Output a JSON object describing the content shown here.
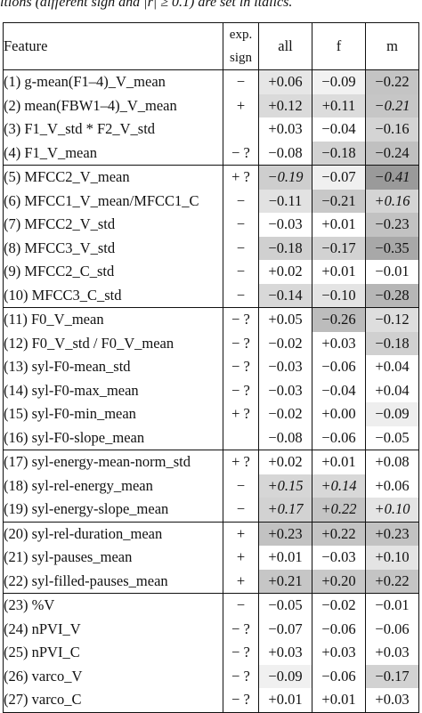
{
  "caption": "itions (different sign and |r| ≥ 0.1) are set in italics.",
  "headers": {
    "feature": "Feature",
    "sign_line1": "exp.",
    "sign_line2": "sign",
    "all": "all",
    "f": "f",
    "m": "m"
  },
  "groups": [
    [
      {
        "feature": "(1) g-mean(F1–4)_V_mean",
        "sign": "−",
        "all": {
          "v": "+0.06",
          "bg": "#e6e6e6"
        },
        "f": {
          "v": "−0.09",
          "bg": "#f2f2f2"
        },
        "m": {
          "v": "−0.22",
          "bg": "#c4c4c4"
        }
      },
      {
        "feature": "(2) mean(FBW1–4)_V_mean",
        "sign": "+",
        "all": {
          "v": "+0.12",
          "bg": "#dadada"
        },
        "f": {
          "v": "+0.11",
          "bg": "#dcdcdc"
        },
        "m": {
          "v": "−0.21",
          "bg": "#c6c6c6",
          "it": true
        }
      },
      {
        "feature": "(3) F1_V_std * F2_V_std",
        "sign": "",
        "all": {
          "v": "+0.03",
          "bg": "#ffffff"
        },
        "f": {
          "v": "−0.04",
          "bg": "#ffffff"
        },
        "m": {
          "v": "−0.16",
          "bg": "#d4d4d4"
        }
      },
      {
        "feature": "(4) F1_V_mean",
        "sign": "− ?",
        "all": {
          "v": "−0.08",
          "bg": "#ffffff"
        },
        "f": {
          "v": "−0.18",
          "bg": "#d2d2d2"
        },
        "m": {
          "v": "−0.24",
          "bg": "#c0c0c0"
        }
      }
    ],
    [
      {
        "feature": "(5) MFCC2_V_mean",
        "sign": "+ ?",
        "all": {
          "v": "−0.19",
          "bg": "#cecece",
          "it": true
        },
        "f": {
          "v": "−0.07",
          "bg": "#f0f0f0"
        },
        "m": {
          "v": "−0.41",
          "bg": "#9a9a9a",
          "it": true
        }
      },
      {
        "feature": "(6) MFCC1_V_mean/MFCC1_C",
        "sign": "−",
        "all": {
          "v": "−0.11",
          "bg": "#e2e2e2"
        },
        "f": {
          "v": "−0.21",
          "bg": "#c8c8c8"
        },
        "m": {
          "v": "+0.16",
          "bg": "#d4d4d4",
          "it": true
        }
      },
      {
        "feature": "(7) MFCC2_V_std",
        "sign": "−",
        "all": {
          "v": "−0.03",
          "bg": "#ffffff"
        },
        "f": {
          "v": "+0.01",
          "bg": "#ffffff"
        },
        "m": {
          "v": "−0.23",
          "bg": "#c2c2c2"
        }
      },
      {
        "feature": "(8) MFCC3_V_std",
        "sign": "−",
        "all": {
          "v": "−0.18",
          "bg": "#d0d0d0"
        },
        "f": {
          "v": "−0.17",
          "bg": "#d2d2d2"
        },
        "m": {
          "v": "−0.35",
          "bg": "#a8a8a8"
        }
      },
      {
        "feature": "(9) MFCC2_C_std",
        "sign": "−",
        "all": {
          "v": "+0.02",
          "bg": "#ffffff"
        },
        "f": {
          "v": "+0.01",
          "bg": "#ffffff"
        },
        "m": {
          "v": "−0.01",
          "bg": "#ffffff"
        }
      },
      {
        "feature": "(10) MFCC3_C_std",
        "sign": "−",
        "all": {
          "v": "−0.14",
          "bg": "#d8d8d8"
        },
        "f": {
          "v": "−0.10",
          "bg": "#e4e4e4"
        },
        "m": {
          "v": "−0.28",
          "bg": "#b6b6b6"
        }
      }
    ],
    [
      {
        "feature": "(11) F0_V_mean",
        "sign": "− ?",
        "all": {
          "v": "+0.05",
          "bg": "#ffffff"
        },
        "f": {
          "v": "−0.26",
          "bg": "#bcbcbc"
        },
        "m": {
          "v": "−0.12",
          "bg": "#dedede"
        }
      },
      {
        "feature": "(12) F0_V_std / F0_V_mean",
        "sign": "− ?",
        "all": {
          "v": "−0.02",
          "bg": "#ffffff"
        },
        "f": {
          "v": "+0.03",
          "bg": "#ffffff"
        },
        "m": {
          "v": "−0.18",
          "bg": "#d0d0d0"
        }
      },
      {
        "feature": "(13) syl-F0-mean_std",
        "sign": "− ?",
        "all": {
          "v": "−0.03",
          "bg": "#ffffff"
        },
        "f": {
          "v": "−0.06",
          "bg": "#ffffff"
        },
        "m": {
          "v": "+0.04",
          "bg": "#ffffff"
        }
      },
      {
        "feature": "(14) syl-F0-max_mean",
        "sign": "− ?",
        "all": {
          "v": "−0.03",
          "bg": "#ffffff"
        },
        "f": {
          "v": "−0.04",
          "bg": "#ffffff"
        },
        "m": {
          "v": "+0.04",
          "bg": "#ffffff"
        }
      },
      {
        "feature": "(15) syl-F0-min_mean",
        "sign": "+ ?",
        "all": {
          "v": "−0.02",
          "bg": "#ffffff"
        },
        "f": {
          "v": "+0.00",
          "bg": "#ffffff"
        },
        "m": {
          "v": "−0.09",
          "bg": "#eeeeee"
        }
      },
      {
        "feature": "(16) syl-F0-slope_mean",
        "sign": "",
        "all": {
          "v": "−0.08",
          "bg": "#ffffff"
        },
        "f": {
          "v": "−0.06",
          "bg": "#ffffff"
        },
        "m": {
          "v": "−0.05",
          "bg": "#ffffff"
        }
      }
    ],
    [
      {
        "feature": "(17) syl-energy-mean-norm_std",
        "sign": "+ ?",
        "all": {
          "v": "+0.02",
          "bg": "#ffffff"
        },
        "f": {
          "v": "+0.01",
          "bg": "#ffffff"
        },
        "m": {
          "v": "+0.08",
          "bg": "#ffffff"
        }
      },
      {
        "feature": "(18) syl-rel-energy_mean",
        "sign": "−",
        "all": {
          "v": "+0.15",
          "bg": "#d6d6d6",
          "it": true
        },
        "f": {
          "v": "+0.14",
          "bg": "#d8d8d8",
          "it": true
        },
        "m": {
          "v": "+0.06",
          "bg": "#ffffff"
        }
      },
      {
        "feature": "(19) syl-energy-slope_mean",
        "sign": "−",
        "all": {
          "v": "+0.17",
          "bg": "#d2d2d2",
          "it": true
        },
        "f": {
          "v": "+0.22",
          "bg": "#c4c4c4",
          "it": true
        },
        "m": {
          "v": "+0.10",
          "bg": "#e4e4e4",
          "it": true
        }
      }
    ],
    [
      {
        "feature": "(20) syl-rel-duration_mean",
        "sign": "+",
        "all": {
          "v": "+0.23",
          "bg": "#c2c2c2"
        },
        "f": {
          "v": "+0.22",
          "bg": "#c4c4c4"
        },
        "m": {
          "v": "+0.23",
          "bg": "#c2c2c2"
        }
      },
      {
        "feature": "(21) syl-pauses_mean",
        "sign": "+",
        "all": {
          "v": "+0.01",
          "bg": "#ffffff"
        },
        "f": {
          "v": "−0.03",
          "bg": "#ffffff"
        },
        "m": {
          "v": "+0.10",
          "bg": "#e4e4e4"
        }
      },
      {
        "feature": "(22) syl-filled-pauses_mean",
        "sign": "+",
        "all": {
          "v": "+0.21",
          "bg": "#c6c6c6"
        },
        "f": {
          "v": "+0.20",
          "bg": "#c8c8c8"
        },
        "m": {
          "v": "+0.22",
          "bg": "#c4c4c4"
        }
      }
    ],
    [
      {
        "feature": "(23) %V",
        "sign": "−",
        "all": {
          "v": "−0.05",
          "bg": "#ffffff"
        },
        "f": {
          "v": "−0.02",
          "bg": "#ffffff"
        },
        "m": {
          "v": "−0.01",
          "bg": "#ffffff"
        }
      },
      {
        "feature": "(24) nPVI_V",
        "sign": "− ?",
        "all": {
          "v": "−0.07",
          "bg": "#ffffff"
        },
        "f": {
          "v": "−0.06",
          "bg": "#ffffff"
        },
        "m": {
          "v": "−0.06",
          "bg": "#ffffff"
        }
      },
      {
        "feature": "(25) nPVI_C",
        "sign": "− ?",
        "all": {
          "v": "+0.03",
          "bg": "#ffffff"
        },
        "f": {
          "v": "+0.03",
          "bg": "#ffffff"
        },
        "m": {
          "v": "+0.03",
          "bg": "#ffffff"
        }
      },
      {
        "feature": "(26) varco_V",
        "sign": "− ?",
        "all": {
          "v": "−0.09",
          "bg": "#f0f0f0"
        },
        "f": {
          "v": "−0.06",
          "bg": "#ffffff"
        },
        "m": {
          "v": "−0.17",
          "bg": "#d2d2d2"
        }
      },
      {
        "feature": "(27) varco_C",
        "sign": "− ?",
        "all": {
          "v": "+0.01",
          "bg": "#ffffff"
        },
        "f": {
          "v": "+0.01",
          "bg": "#ffffff"
        },
        "m": {
          "v": "+0.03",
          "bg": "#ffffff"
        }
      }
    ]
  ]
}
